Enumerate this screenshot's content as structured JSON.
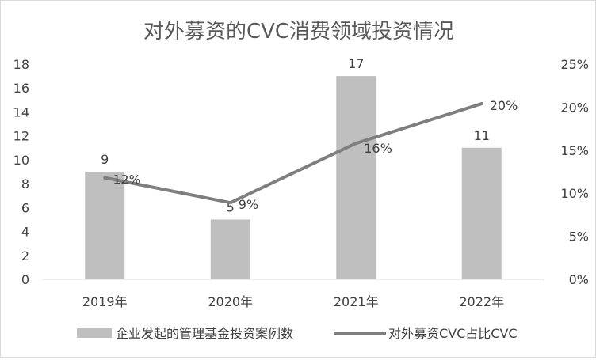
{
  "chart_data": {
    "type": "bar+line",
    "title": "对外募资的CVC消费领域投资情况",
    "categories": [
      "2019年",
      "2020年",
      "2021年",
      "2022年"
    ],
    "series": [
      {
        "name": "企业发起的管理基金投资案例数",
        "type": "bar",
        "axis": "left",
        "values": [
          9,
          5,
          17,
          11
        ],
        "labels": [
          "9",
          "5",
          "17",
          "11"
        ],
        "color": "#bfbfbf"
      },
      {
        "name": "对外募资CVC占比CVC",
        "type": "line",
        "axis": "right",
        "values": [
          11.8,
          8.9,
          15.8,
          20.4
        ],
        "labels": [
          "12%",
          "9%",
          "16%",
          "20%"
        ],
        "color": "#7f7f7f"
      }
    ],
    "left_axis": {
      "ylim": [
        0,
        18
      ],
      "ticks": [
        "0",
        "2",
        "4",
        "6",
        "8",
        "10",
        "12",
        "14",
        "16",
        "18"
      ]
    },
    "right_axis": {
      "ylim": [
        0,
        25
      ],
      "ticks": [
        "0%",
        "5%",
        "10%",
        "15%",
        "20%",
        "25%"
      ]
    },
    "grid": false,
    "legend": "bottom"
  }
}
